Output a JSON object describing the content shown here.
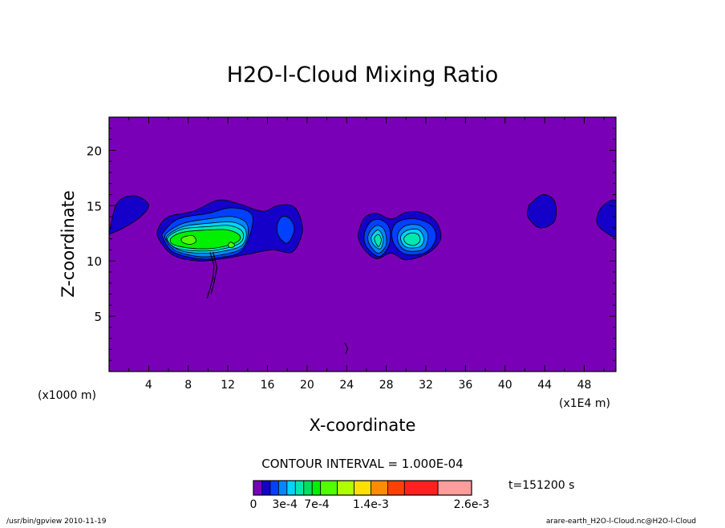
{
  "footer": {
    "left": "/usr/bin/gpview  2010-11-19",
    "right": "arare-earth_H2O-l-Cloud.nc@H2O-l-Cloud"
  },
  "colorbar": {
    "contour_interval_label": "CONTOUR INTERVAL = 1.000E-04",
    "time_label": "t=151200 s",
    "colors": [
      "#7a00b8",
      "#1400c8",
      "#0040ff",
      "#0088ff",
      "#00d4ff",
      "#00e8b0",
      "#00e060",
      "#00f000",
      "#50ff00",
      "#b0ff00",
      "#ffe000",
      "#ff8c00",
      "#ff4000",
      "#ff2020",
      "#ff9c9c"
    ],
    "tick_labels": [
      {
        "text": "0",
        "at": 0
      },
      {
        "text": "3e-4",
        "at": 3
      },
      {
        "text": "7e-4",
        "at": 7
      },
      {
        "text": "1.4e-3",
        "at": 14
      },
      {
        "text": "2.6e-3",
        "at": 26
      }
    ],
    "boundaries": [
      0,
      1,
      2,
      3,
      4,
      5,
      6,
      7,
      8,
      10,
      12,
      14,
      16,
      18,
      22,
      26
    ]
  },
  "chart_data": {
    "type": "heatmap",
    "title": "H2O-l-Cloud Mixing Ratio",
    "xlabel": "X-coordinate",
    "ylabel": "Z-coordinate",
    "x_units_label": "(x1000 m)",
    "x_scale_label": "(x1E4 m)",
    "xlim": [
      0,
      51.2
    ],
    "ylim": [
      0,
      23
    ],
    "x_ticks": [
      4,
      8,
      12,
      16,
      20,
      24,
      28,
      32,
      36,
      40,
      44,
      48
    ],
    "y_ticks": [
      5,
      10,
      15,
      20
    ],
    "background_color": "#7a00b8",
    "regions": [
      {
        "level": 1,
        "points": [
          [
            0,
            12.5
          ],
          [
            0.8,
            15.2
          ],
          [
            2.5,
            15.9
          ],
          [
            4,
            15.1
          ],
          [
            3.2,
            14
          ],
          [
            1.5,
            13
          ],
          [
            0,
            12.4
          ]
        ]
      },
      {
        "level": 1,
        "points": [
          [
            42.6,
            15.2
          ],
          [
            43.8,
            16
          ],
          [
            45,
            15.4
          ],
          [
            45,
            13.6
          ],
          [
            43.5,
            13
          ],
          [
            42.3,
            14
          ],
          [
            42.4,
            15
          ]
        ]
      },
      {
        "level": 1,
        "points": [
          [
            51.2,
            15.4
          ],
          [
            49.7,
            14.8
          ],
          [
            49.3,
            13.4
          ],
          [
            50.5,
            12.4
          ],
          [
            51.2,
            12.4
          ]
        ]
      },
      {
        "level": 1,
        "points": [
          [
            5,
            13
          ],
          [
            6,
            14
          ],
          [
            8.5,
            14.5
          ],
          [
            11,
            15.5
          ],
          [
            13,
            15.2
          ],
          [
            15.5,
            14.5
          ],
          [
            17,
            15
          ],
          [
            18.5,
            15
          ],
          [
            19.3,
            14
          ],
          [
            19.5,
            12.5
          ],
          [
            18.5,
            10.8
          ],
          [
            16.5,
            11
          ],
          [
            14,
            10.6
          ],
          [
            11.5,
            10.2
          ],
          [
            9,
            10
          ],
          [
            6.5,
            10.5
          ],
          [
            5,
            12
          ]
        ]
      },
      {
        "level": 1,
        "points": [
          [
            25.2,
            12.6
          ],
          [
            25.8,
            13.9
          ],
          [
            27,
            14.3
          ],
          [
            28.5,
            13.8
          ],
          [
            30,
            14.4
          ],
          [
            31.5,
            14.4
          ],
          [
            33,
            13.6
          ],
          [
            33.5,
            12
          ],
          [
            32.2,
            10.7
          ],
          [
            30,
            10.1
          ],
          [
            28.5,
            10.7
          ],
          [
            27,
            10.2
          ],
          [
            25.8,
            11
          ],
          [
            25.2,
            12
          ]
        ]
      },
      {
        "level": 2,
        "points": [
          [
            5.5,
            12.6
          ],
          [
            7,
            13.8
          ],
          [
            10,
            14.3
          ],
          [
            12.5,
            14.8
          ],
          [
            14.5,
            14
          ],
          [
            13.5,
            11
          ],
          [
            11,
            10.3
          ],
          [
            9,
            10.2
          ],
          [
            6.5,
            10.8
          ],
          [
            5.5,
            12
          ]
        ]
      },
      {
        "level": 2,
        "points": [
          [
            17,
            13.3
          ],
          [
            17.5,
            14
          ],
          [
            18.3,
            13.8
          ],
          [
            18.7,
            12.8
          ],
          [
            18,
            11.6
          ],
          [
            17.1,
            12.3
          ]
        ]
      },
      {
        "level": 2,
        "points": [
          [
            25.8,
            12.5
          ],
          [
            26.5,
            13.6
          ],
          [
            27.5,
            13.7
          ],
          [
            28.3,
            13
          ],
          [
            28.3,
            11.5
          ],
          [
            27.3,
            10.4
          ],
          [
            26,
            11.3
          ]
        ]
      },
      {
        "level": 2,
        "points": [
          [
            28.6,
            12.8
          ],
          [
            29.3,
            13.6
          ],
          [
            31,
            13.8
          ],
          [
            32.6,
            13.2
          ],
          [
            33,
            12
          ],
          [
            32,
            10.8
          ],
          [
            30,
            10.6
          ],
          [
            28.8,
            11.5
          ]
        ]
      },
      {
        "level": 3,
        "points": [
          [
            5.8,
            12.5
          ],
          [
            7.5,
            13.4
          ],
          [
            10,
            13.8
          ],
          [
            12.5,
            14
          ],
          [
            14,
            13.2
          ],
          [
            13.5,
            11.2
          ],
          [
            11,
            10.5
          ],
          [
            9,
            10.4
          ],
          [
            6.8,
            10.9
          ],
          [
            5.8,
            11.8
          ]
        ]
      },
      {
        "level": 3,
        "points": [
          [
            26.2,
            12.4
          ],
          [
            27,
            13.2
          ],
          [
            27.8,
            12.8
          ],
          [
            28,
            11.5
          ],
          [
            27.2,
            10.7
          ],
          [
            26.3,
            11.5
          ]
        ]
      },
      {
        "level": 3,
        "points": [
          [
            29.2,
            12.5
          ],
          [
            30,
            13.2
          ],
          [
            31.4,
            13.2
          ],
          [
            32.2,
            12.4
          ],
          [
            31.8,
            11.1
          ],
          [
            30.2,
            10.9
          ],
          [
            29.3,
            11.5
          ]
        ]
      },
      {
        "level": 4,
        "points": [
          [
            5.9,
            12.3
          ],
          [
            7.5,
            13.1
          ],
          [
            10,
            13.4
          ],
          [
            12.5,
            13.5
          ],
          [
            13.8,
            12.8
          ],
          [
            13.4,
            11.4
          ],
          [
            11,
            10.8
          ],
          [
            9,
            10.7
          ],
          [
            7,
            11
          ],
          [
            6,
            11.7
          ]
        ]
      },
      {
        "level": 4,
        "points": [
          [
            26.5,
            12.2
          ],
          [
            27.2,
            12.8
          ],
          [
            27.7,
            12
          ],
          [
            27.4,
            11.1
          ],
          [
            26.7,
            11.5
          ]
        ]
      },
      {
        "level": 4,
        "points": [
          [
            29.5,
            12.3
          ],
          [
            30.2,
            12.8
          ],
          [
            31.3,
            12.8
          ],
          [
            31.8,
            12
          ],
          [
            31.4,
            11.3
          ],
          [
            30.2,
            11.2
          ],
          [
            29.6,
            11.6
          ]
        ]
      },
      {
        "level": 5,
        "points": [
          [
            6,
            12.2
          ],
          [
            7.5,
            12.9
          ],
          [
            10,
            13.1
          ],
          [
            12.2,
            13.2
          ],
          [
            13.5,
            12.6
          ],
          [
            13.2,
            11.6
          ],
          [
            11,
            11
          ],
          [
            9,
            10.9
          ],
          [
            7,
            11.1
          ],
          [
            6.1,
            11.6
          ]
        ]
      },
      {
        "level": 5,
        "points": [
          [
            26.8,
            12
          ],
          [
            27.2,
            12.4
          ],
          [
            27.5,
            11.9
          ],
          [
            27.2,
            11.3
          ]
        ]
      },
      {
        "level": 5,
        "points": [
          [
            29.8,
            12.1
          ],
          [
            30.4,
            12.5
          ],
          [
            31.2,
            12.4
          ],
          [
            31.4,
            11.8
          ],
          [
            30.8,
            11.4
          ],
          [
            30,
            11.6
          ]
        ]
      },
      {
        "level": 7,
        "points": [
          [
            6.3,
            12.1
          ],
          [
            7.5,
            12.6
          ],
          [
            10,
            12.8
          ],
          [
            12,
            12.8
          ],
          [
            13.2,
            12.3
          ],
          [
            12.9,
            11.7
          ],
          [
            11,
            11.2
          ],
          [
            9,
            11.1
          ],
          [
            7.2,
            11.3
          ],
          [
            6.3,
            11.6
          ]
        ]
      },
      {
        "level": 8,
        "points": [
          [
            7.4,
            12.1
          ],
          [
            8.4,
            12.3
          ],
          [
            8.8,
            11.8
          ],
          [
            8.2,
            11.5
          ],
          [
            7.4,
            11.7
          ]
        ]
      },
      {
        "level": 8,
        "points": [
          [
            12.3,
            11.7
          ],
          [
            12.7,
            11.4
          ],
          [
            12.3,
            11.2
          ],
          [
            12,
            11.4
          ]
        ]
      }
    ],
    "contour_lines": [
      [
        [
          10.2,
          10.8
        ],
        [
          10.6,
          9.6
        ],
        [
          10.5,
          8.5
        ],
        [
          10.2,
          7.5
        ],
        [
          9.9,
          6.6
        ]
      ],
      [
        [
          10.5,
          10.8
        ],
        [
          10.9,
          9.4
        ],
        [
          10.6,
          8
        ],
        [
          10.3,
          7
        ]
      ],
      [
        [
          23.8,
          2.6
        ],
        [
          24.1,
          2.1
        ],
        [
          23.9,
          1.6
        ]
      ]
    ]
  }
}
